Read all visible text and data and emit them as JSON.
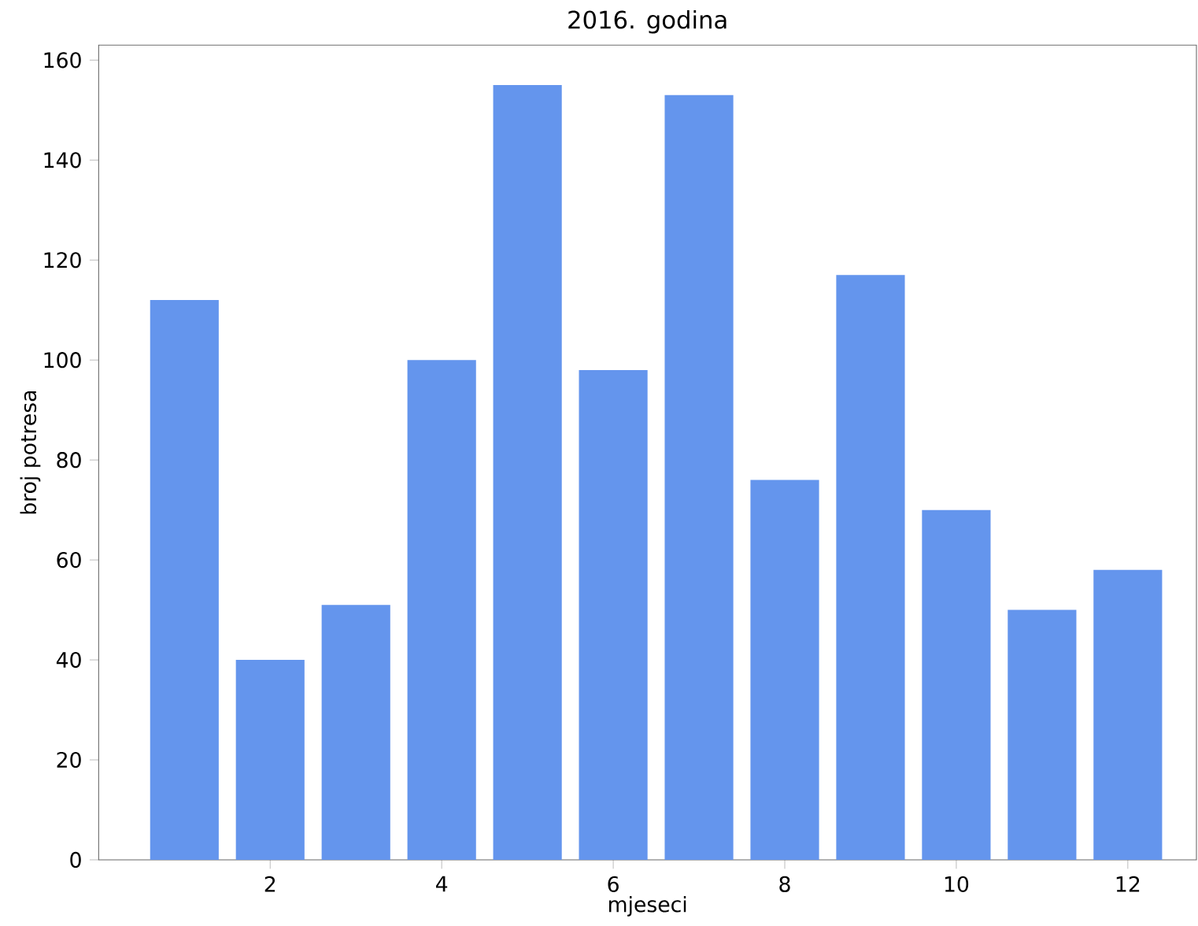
{
  "chart_data": {
    "type": "bar",
    "title": "2016. godina",
    "xlabel": "mjeseci",
    "ylabel": "broj potresa",
    "x": [
      1,
      2,
      3,
      4,
      5,
      6,
      7,
      8,
      9,
      10,
      11,
      12
    ],
    "values": [
      112,
      40,
      51,
      100,
      155,
      98,
      153,
      76,
      117,
      70,
      50,
      58
    ],
    "color": "#6495ed",
    "xlim": [
      0,
      12.8
    ],
    "xticks": [
      2,
      4,
      6,
      8,
      10,
      12
    ],
    "ylim": [
      0,
      163
    ],
    "yticks": [
      0,
      20,
      40,
      60,
      80,
      100,
      120,
      140,
      160
    ],
    "marker": "none"
  }
}
